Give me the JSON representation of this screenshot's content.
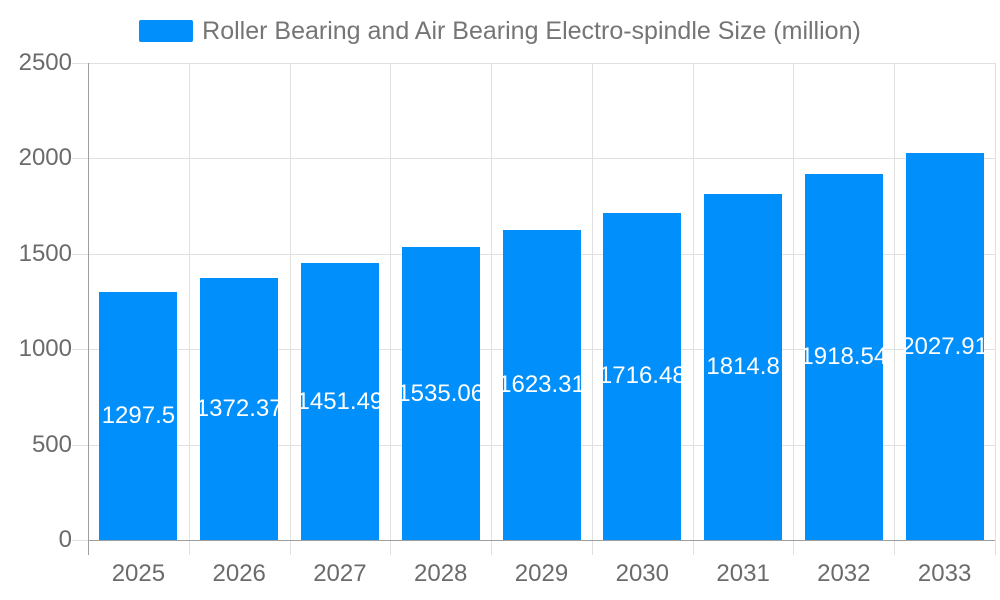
{
  "legend": {
    "label": "Roller Bearing and Air Bearing Electro-spindle Size (million)"
  },
  "chart_data": {
    "type": "bar",
    "title": "Roller Bearing and Air Bearing Electro-spindle Size (million)",
    "categories": [
      "2025",
      "2026",
      "2027",
      "2028",
      "2029",
      "2030",
      "2031",
      "2032",
      "2033"
    ],
    "series": [
      {
        "name": "Roller Bearing and Air Bearing Electro-spindle Size (million)",
        "values": [
          1297.5,
          1372.37,
          1451.49,
          1535.06,
          1623.31,
          1716.48,
          1814.8,
          1918.54,
          2027.91
        ]
      }
    ],
    "bar_labels": [
      "1297.5",
      "1372.37",
      "1451.49",
      "1535.06",
      "1623.31",
      "1716.48",
      "1814.8",
      "1918.54",
      "2027.91"
    ],
    "xlabel": "",
    "ylabel": "",
    "ylim": [
      0,
      2500
    ],
    "yticks": [
      0,
      500,
      1000,
      1500,
      2000,
      2500
    ],
    "grid": true,
    "legend_position": "top",
    "bar_label_position": "inside-middle"
  },
  "colors": {
    "bar": "#008FFB",
    "bar_label": "#FFFFFF",
    "grid": "#E0E0E0",
    "axis_line": "#9E9E9E",
    "axis_text": "#6B6B6B",
    "legend_text": "#757575",
    "background": "#FFFFFF"
  }
}
